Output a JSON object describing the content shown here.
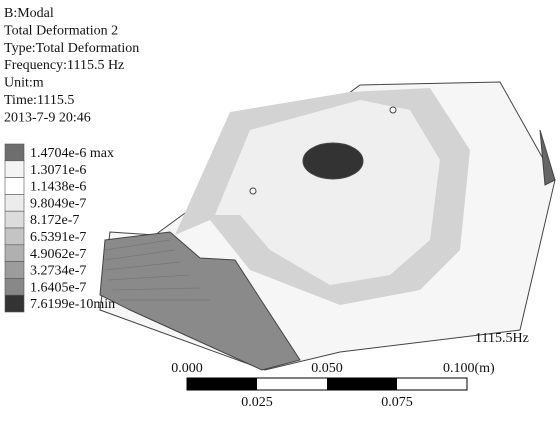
{
  "header": {
    "lines": [
      "B:Modal",
      "Total Deformation 2",
      "Type:Total Deformation",
      "Frequency:1115.5 Hz",
      "Unit:m",
      "Time:1115.5",
      "2013-7-9 20:46"
    ]
  },
  "legend": {
    "entries": [
      {
        "label": "1.4704e-6 max",
        "color": "#6e6e6e"
      },
      {
        "label": "1.3071e-6",
        "color": "#f4f4f4"
      },
      {
        "label": "1.1438e-6",
        "color": "#ffffff"
      },
      {
        "label": "9.8049e-7",
        "color": "#ececec"
      },
      {
        "label": "8.172e-7",
        "color": "#dcdcdc"
      },
      {
        "label": "6.5391e-7",
        "color": "#c4c4c4"
      },
      {
        "label": "4.9062e-7",
        "color": "#b0b0b0"
      },
      {
        "label": "3.2734e-7",
        "color": "#9c9c9c"
      },
      {
        "label": "1.6405e-7",
        "color": "#888888"
      },
      {
        "label": "7.6199e-10min",
        "color": "#333333"
      }
    ]
  },
  "frequency_label": "1115.5Hz",
  "scale_bar": {
    "top_labels": [
      "0.000",
      "0.050",
      "0.100(m)"
    ],
    "bottom_labels": [
      "0.025",
      "0.075"
    ]
  }
}
